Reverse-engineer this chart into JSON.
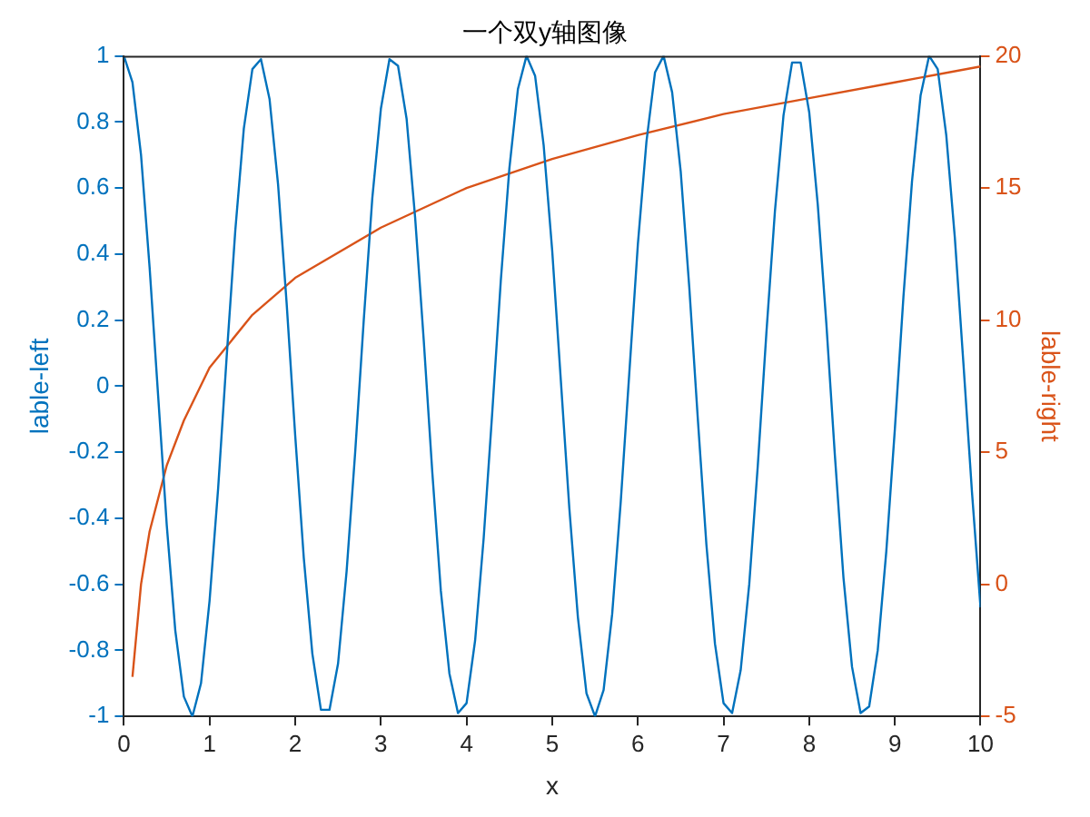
{
  "chart_data": {
    "type": "line",
    "title": "一个双y轴图像",
    "xlabel": "x",
    "ylabel": "lable-left",
    "y2label": "lable-right",
    "xlim": [
      0,
      10
    ],
    "xticks": [
      0,
      1,
      2,
      3,
      4,
      5,
      6,
      7,
      8,
      9,
      10
    ],
    "ylim": [
      -1,
      1
    ],
    "yticks": [
      -1,
      -0.8,
      -0.6,
      -0.4,
      -0.2,
      0,
      0.2,
      0.4,
      0.6,
      0.8,
      1
    ],
    "y2lim": [
      -5,
      20
    ],
    "y2ticks": [
      -5,
      0,
      5,
      10,
      15,
      20
    ],
    "grid": false,
    "legend": false,
    "marker": "none",
    "line_style": "solid",
    "series": [
      {
        "color": "#0072bd",
        "x": [
          0,
          0.1,
          0.2,
          0.3,
          0.4,
          0.5,
          0.6,
          0.7,
          0.8,
          0.9,
          1,
          1.1,
          1.2,
          1.3,
          1.4,
          1.5,
          1.6,
          1.7,
          1.8,
          1.9,
          2,
          2.1,
          2.2,
          2.3,
          2.4,
          2.5,
          2.6,
          2.7,
          2.8,
          2.9,
          3,
          3.1,
          3.2,
          3.3,
          3.4,
          3.5,
          3.6,
          3.7,
          3.8,
          3.9,
          4,
          4.1,
          4.2,
          4.3,
          4.4,
          4.5,
          4.6,
          4.7,
          4.8,
          4.9,
          5,
          5.1,
          5.2,
          5.3,
          5.4,
          5.5,
          5.6,
          5.7,
          5.8,
          5.9,
          6,
          6.1,
          6.2,
          6.3,
          6.4,
          6.5,
          6.6,
          6.7,
          6.8,
          6.9,
          7,
          7.1,
          7.2,
          7.3,
          7.4,
          7.5,
          7.6,
          7.7,
          7.8,
          7.9,
          8,
          8.1,
          8.2,
          8.3,
          8.4,
          8.5,
          8.6,
          8.7,
          8.8,
          8.9,
          9,
          9.1,
          9.2,
          9.3,
          9.4,
          9.5,
          9.6,
          9.7,
          9.8,
          9.9,
          10
        ],
        "values": [
          1,
          0.92,
          0.7,
          0.36,
          -0.03,
          -0.42,
          -0.74,
          -0.94,
          -1,
          -0.9,
          -0.65,
          -0.31,
          0.09,
          0.47,
          0.78,
          0.96,
          0.99,
          0.87,
          0.61,
          0.25,
          -0.15,
          -0.52,
          -0.81,
          -0.98,
          -0.98,
          -0.84,
          -0.56,
          -0.2,
          0.2,
          0.57,
          0.84,
          0.99,
          0.97,
          0.81,
          0.51,
          0.14,
          -0.26,
          -0.62,
          -0.87,
          -0.99,
          -0.96,
          -0.77,
          -0.46,
          -0.08,
          0.32,
          0.66,
          0.9,
          1,
          0.94,
          0.73,
          0.41,
          0.02,
          -0.37,
          -0.7,
          -0.93,
          -1,
          -0.92,
          -0.69,
          -0.35,
          0.04,
          0.43,
          0.74,
          0.95,
          1,
          0.89,
          0.65,
          0.3,
          -0.1,
          -0.48,
          -0.78,
          -0.96,
          -0.99,
          -0.86,
          -0.6,
          -0.24,
          0.16,
          0.53,
          0.82,
          0.98,
          0.98,
          0.83,
          0.55,
          0.19,
          -0.21,
          -0.58,
          -0.85,
          -0.99,
          -0.97,
          -0.8,
          -0.5,
          -0.13,
          0.27,
          0.62,
          0.88,
          1,
          0.96,
          0.76,
          0.45,
          0.07,
          -0.32,
          -0.67
        ]
      },
      {
        "color": "#d95319",
        "axis": "y2",
        "x": [
          0.1,
          0.2,
          0.3,
          0.5,
          0.7,
          1,
          1.5,
          2,
          3,
          4,
          5,
          6,
          7,
          8,
          9,
          10
        ],
        "values": [
          -3.5,
          0,
          2,
          4.5,
          6.2,
          8.2,
          10.2,
          11.6,
          13.5,
          15,
          16.1,
          17,
          17.8,
          18.4,
          19,
          19.6
        ]
      }
    ]
  }
}
